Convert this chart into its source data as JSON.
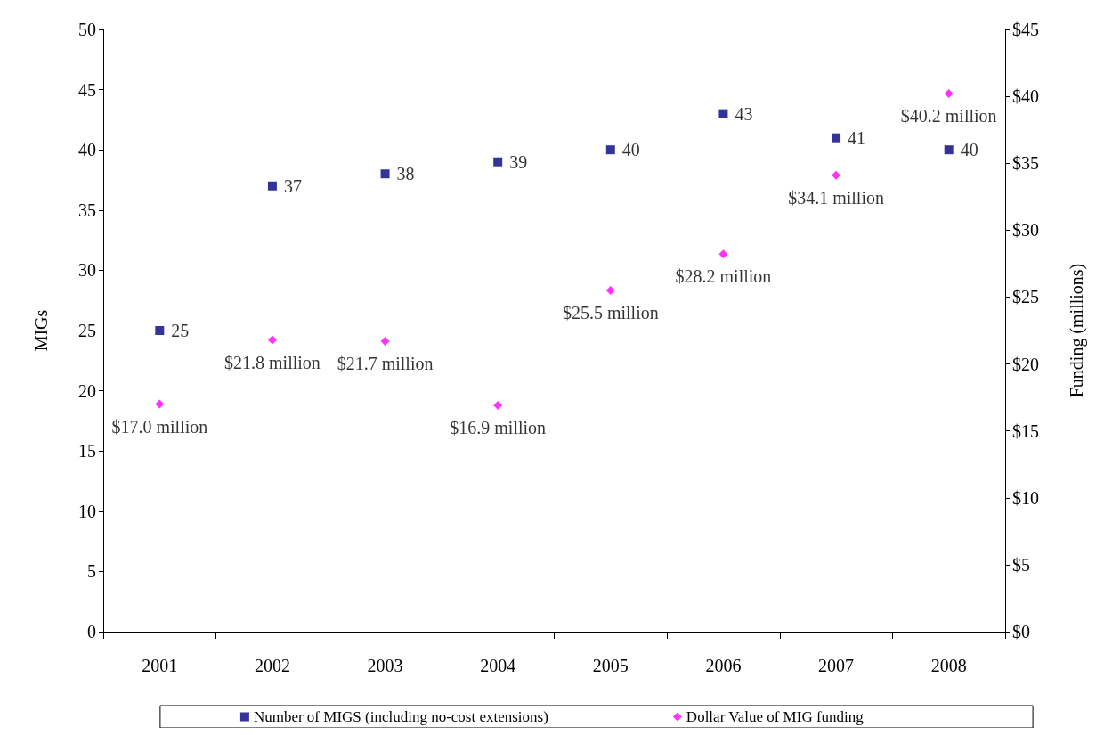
{
  "chart_data": {
    "type": "scatter",
    "ylabel": "MIGs",
    "y2label": "Funding (millions)",
    "categories": [
      "2001",
      "2002",
      "2003",
      "2004",
      "2005",
      "2006",
      "2007",
      "2008"
    ],
    "ylim": [
      0,
      50
    ],
    "yticks": [
      0,
      5,
      10,
      15,
      20,
      25,
      30,
      35,
      40,
      45,
      50
    ],
    "y2lim": [
      0,
      45
    ],
    "y2ticks": [
      {
        "value": 0,
        "label": "$0"
      },
      {
        "value": 5,
        "label": "$5"
      },
      {
        "value": 10,
        "label": "$10"
      },
      {
        "value": 15,
        "label": "$15"
      },
      {
        "value": 20,
        "label": "$20"
      },
      {
        "value": 25,
        "label": "$25"
      },
      {
        "value": 30,
        "label": "$30"
      },
      {
        "value": 35,
        "label": "$35"
      },
      {
        "value": 40,
        "label": "$40"
      },
      {
        "value": 45,
        "label": "$45"
      }
    ],
    "grid": false,
    "legend": "bottom",
    "series": [
      {
        "name": "Number of MIGS (including no-cost extensions)",
        "color": "#000080",
        "marker": "square",
        "values": [
          25,
          37,
          38,
          39,
          40,
          43,
          41,
          40
        ],
        "value_labels": [
          "25",
          "37",
          "38",
          "39",
          "40",
          "43",
          "41",
          "40"
        ]
      },
      {
        "name": "Dollar Value of MIG funding",
        "color": "#ff00ff",
        "marker": "diamond",
        "axis": "y2",
        "values": [
          17.0,
          21.8,
          21.7,
          16.9,
          25.5,
          28.2,
          34.1,
          40.2
        ],
        "value_labels": [
          "$17.0 million",
          "$21.8 million",
          "$21.7 million",
          "$16.9 million",
          "$25.5 million",
          "$28.2 million",
          "$34.1 million",
          "$40.2 million"
        ]
      }
    ]
  }
}
